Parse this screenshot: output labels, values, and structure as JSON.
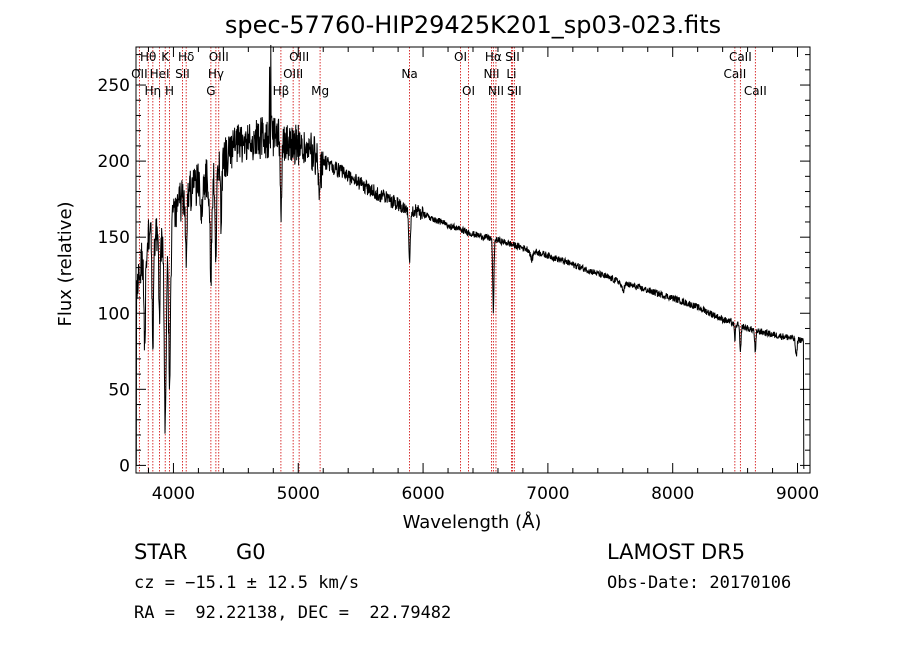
{
  "chart_data": {
    "type": "line",
    "title": "spec-57760-HIP29425K201_sp03-023.fits",
    "xlabel": "Wavelength (Å)",
    "ylabel": "Flux (relative)",
    "xlim": [
      3700,
      9100
    ],
    "ylim": [
      -5,
      275
    ],
    "x_ticks": [
      4000,
      5000,
      6000,
      7000,
      8000,
      9000
    ],
    "y_ticks": [
      0,
      50,
      100,
      150,
      200,
      250
    ],
    "grid": false,
    "legend": "none",
    "continuum": [
      [
        3700,
        120
      ],
      [
        3800,
        150
      ],
      [
        3900,
        150
      ],
      [
        4000,
        165
      ],
      [
        4100,
        178
      ],
      [
        4200,
        185
      ],
      [
        4300,
        190
      ],
      [
        4400,
        200
      ],
      [
        4500,
        210
      ],
      [
        4600,
        212
      ],
      [
        4700,
        215
      ],
      [
        4800,
        216
      ],
      [
        4900,
        214
      ],
      [
        5000,
        210
      ],
      [
        5200,
        200
      ],
      [
        5400,
        190
      ],
      [
        5600,
        180
      ],
      [
        5800,
        172
      ],
      [
        6000,
        165
      ],
      [
        6200,
        158
      ],
      [
        6400,
        152
      ],
      [
        6600,
        148
      ],
      [
        6800,
        143
      ],
      [
        7000,
        138
      ],
      [
        7200,
        132
      ],
      [
        7400,
        126
      ],
      [
        7600,
        120
      ],
      [
        7800,
        115
      ],
      [
        8000,
        110
      ],
      [
        8200,
        104
      ],
      [
        8400,
        96
      ],
      [
        8600,
        90
      ],
      [
        8800,
        86
      ],
      [
        9000,
        83
      ],
      [
        9050,
        82
      ]
    ],
    "absorption_features": [
      {
        "w": 3934,
        "depth": 130,
        "width": 8
      },
      {
        "w": 3969,
        "depth": 110,
        "width": 8
      },
      {
        "w": 3770,
        "depth": 60,
        "width": 6
      },
      {
        "w": 3835,
        "depth": 70,
        "width": 6
      },
      {
        "w": 3889,
        "depth": 50,
        "width": 6
      },
      {
        "w": 4102,
        "depth": 35,
        "width": 6
      },
      {
        "w": 4227,
        "depth": 25,
        "width": 6
      },
      {
        "w": 4300,
        "depth": 65,
        "width": 8
      },
      {
        "w": 4340,
        "depth": 55,
        "width": 6
      },
      {
        "w": 4383,
        "depth": 40,
        "width": 5
      },
      {
        "w": 4861,
        "depth": 45,
        "width": 6
      },
      {
        "w": 5170,
        "depth": 18,
        "width": 10
      },
      {
        "w": 5892,
        "depth": 38,
        "width": 6
      },
      {
        "w": 6563,
        "depth": 48,
        "width": 5
      },
      {
        "w": 6870,
        "depth": 6,
        "width": 10
      },
      {
        "w": 7600,
        "depth": 5,
        "width": 12
      },
      {
        "w": 8498,
        "depth": 10,
        "width": 5
      },
      {
        "w": 8542,
        "depth": 18,
        "width": 5
      },
      {
        "w": 8662,
        "depth": 15,
        "width": 5
      },
      {
        "w": 8990,
        "depth": 12,
        "width": 6
      }
    ],
    "spikes": [
      {
        "w": 4780,
        "flux": 280
      },
      {
        "w": 4770,
        "flux": 262
      }
    ],
    "lines": [
      {
        "label": "Hθ",
        "w": 3798,
        "row": 1
      },
      {
        "label": "K",
        "w": 3934,
        "row": 1
      },
      {
        "label": "Hδ",
        "w": 4102,
        "row": 1
      },
      {
        "label": "OIII",
        "w": 4363,
        "row": 1
      },
      {
        "label": "OIII",
        "w": 5007,
        "row": 1
      },
      {
        "label": "OI",
        "w": 6300,
        "row": 1
      },
      {
        "label": "Hα",
        "w": 6563,
        "row": 1
      },
      {
        "label": "SII",
        "w": 6716,
        "row": 1
      },
      {
        "label": "CaII",
        "w": 8542,
        "row": 1
      },
      {
        "label": "OII",
        "w": 3727,
        "row": 2
      },
      {
        "label": "HeI",
        "w": 3889,
        "row": 2
      },
      {
        "label": "SII",
        "w": 4072,
        "row": 2
      },
      {
        "label": "Hγ",
        "w": 4340,
        "row": 2
      },
      {
        "label": "OIII",
        "w": 4959,
        "row": 2
      },
      {
        "label": "Na",
        "w": 5892,
        "row": 2
      },
      {
        "label": "NII",
        "w": 6548,
        "row": 2
      },
      {
        "label": "Li",
        "w": 6708,
        "row": 2
      },
      {
        "label": "CaII",
        "w": 8498,
        "row": 2
      },
      {
        "label": "Hη",
        "w": 3835,
        "row": 3
      },
      {
        "label": "H",
        "w": 3969,
        "row": 3
      },
      {
        "label": "G",
        "w": 4300,
        "row": 3
      },
      {
        "label": "Hβ",
        "w": 4861,
        "row": 3
      },
      {
        "label": "Mg",
        "w": 5175,
        "row": 3
      },
      {
        "label": "OI",
        "w": 6364,
        "row": 3
      },
      {
        "label": "NII",
        "w": 6584,
        "row": 3
      },
      {
        "label": "SII",
        "w": 6731,
        "row": 3
      },
      {
        "label": "CaII",
        "w": 8662,
        "row": 3
      }
    ]
  },
  "info": {
    "object_class": "STAR",
    "subclass": "G0",
    "survey": "LAMOST DR5",
    "cz": "cz = −15.1 ± 12.5 km/s",
    "obs_date": "Obs-Date: 20170106",
    "coords": "RA =  92.22138, DEC =  22.79482"
  }
}
